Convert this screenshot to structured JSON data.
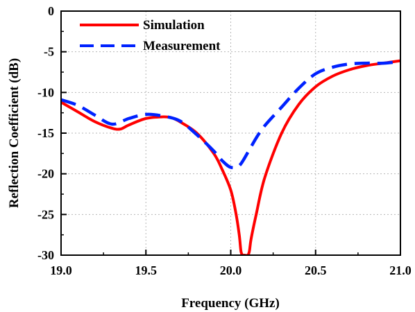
{
  "chart_data": {
    "type": "line",
    "title": "",
    "xlabel": "Frequency (GHz)",
    "ylabel": "Reflection Coefficient (dB)",
    "xlim": [
      19.0,
      21.0
    ],
    "ylim": [
      -30,
      0
    ],
    "x_ticks": [
      19.0,
      19.5,
      20.0,
      20.5,
      21.0
    ],
    "x_tick_labels": [
      "19.0",
      "19.5",
      "20.0",
      "20.5",
      "21.0"
    ],
    "y_ticks": [
      0,
      -5,
      -10,
      -15,
      -20,
      -25,
      -30
    ],
    "y_tick_labels": [
      "0",
      "-5",
      "-10",
      "-15",
      "-20",
      "-25",
      "-30"
    ],
    "grid": true,
    "legend_position": "top-left",
    "series": [
      {
        "name": "Simulation",
        "color": "#ff0000",
        "style": "solid",
        "x": [
          19.0,
          19.1,
          19.2,
          19.3,
          19.35,
          19.4,
          19.5,
          19.6,
          19.65,
          19.7,
          19.8,
          19.9,
          19.95,
          20.0,
          20.03,
          20.05,
          20.06,
          20.07,
          20.08,
          20.1,
          20.11,
          20.12,
          20.15,
          20.2,
          20.3,
          20.4,
          20.5,
          20.6,
          20.7,
          20.8,
          20.9,
          21.0
        ],
        "y": [
          -11.2,
          -12.4,
          -13.6,
          -14.4,
          -14.5,
          -14.0,
          -13.2,
          -13.0,
          -13.1,
          -13.6,
          -15.0,
          -17.5,
          -19.5,
          -22.0,
          -24.8,
          -27.5,
          -29.5,
          -30.0,
          -30.0,
          -30.0,
          -29.5,
          -28.0,
          -25.0,
          -20.5,
          -15.0,
          -11.5,
          -9.3,
          -8.0,
          -7.2,
          -6.7,
          -6.4,
          -6.1
        ]
      },
      {
        "name": "Measurement",
        "color": "#0022ff",
        "style": "dashed",
        "x": [
          19.0,
          19.1,
          19.2,
          19.3,
          19.4,
          19.5,
          19.6,
          19.7,
          19.8,
          19.9,
          19.95,
          20.0,
          20.05,
          20.1,
          20.15,
          20.2,
          20.3,
          20.4,
          20.5,
          20.6,
          20.7,
          20.8,
          20.9,
          21.0
        ],
        "y": [
          -10.9,
          -11.6,
          -12.8,
          -13.9,
          -13.2,
          -12.7,
          -12.9,
          -13.5,
          -15.2,
          -17.2,
          -18.4,
          -19.2,
          -19.0,
          -17.4,
          -15.6,
          -14.1,
          -11.8,
          -9.5,
          -7.7,
          -6.9,
          -6.5,
          -6.4,
          -6.4,
          -6.2
        ]
      }
    ]
  }
}
